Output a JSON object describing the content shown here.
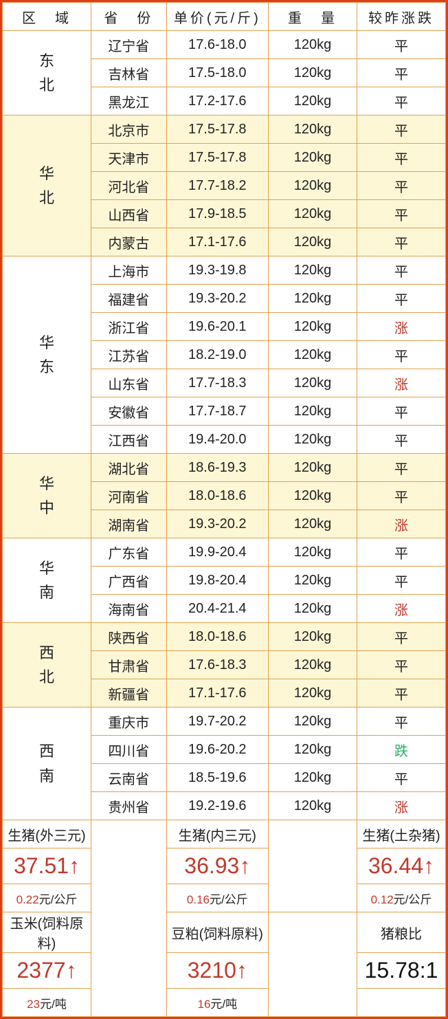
{
  "headers": {
    "region": "区　域",
    "province": "省　份",
    "price": "单价(元/斤)",
    "weight": "重　量",
    "trend": "较昨涨跌"
  },
  "trend_labels": {
    "flat": "平",
    "up": "涨",
    "down": "跌"
  },
  "groups": [
    {
      "region_lines": [
        "东",
        "北"
      ],
      "yellow": false,
      "rows": [
        {
          "province": "辽宁省",
          "price": "17.6-18.0",
          "weight": "120kg",
          "trend": "flat"
        },
        {
          "province": "吉林省",
          "price": "17.5-18.0",
          "weight": "120kg",
          "trend": "flat"
        },
        {
          "province": "黑龙江",
          "price": "17.2-17.6",
          "weight": "120kg",
          "trend": "flat"
        }
      ]
    },
    {
      "region_lines": [
        "华",
        "北"
      ],
      "yellow": true,
      "rows": [
        {
          "province": "北京市",
          "price": "17.5-17.8",
          "weight": "120kg",
          "trend": "flat"
        },
        {
          "province": "天津市",
          "price": "17.5-17.8",
          "weight": "120kg",
          "trend": "flat"
        },
        {
          "province": "河北省",
          "price": "17.7-18.2",
          "weight": "120kg",
          "trend": "flat"
        },
        {
          "province": "山西省",
          "price": "17.9-18.5",
          "weight": "120kg",
          "trend": "flat"
        },
        {
          "province": "内蒙古",
          "price": "17.1-17.6",
          "weight": "120kg",
          "trend": "flat"
        }
      ]
    },
    {
      "region_lines": [
        "华",
        "东"
      ],
      "yellow": false,
      "rows": [
        {
          "province": "上海市",
          "price": "19.3-19.8",
          "weight": "120kg",
          "trend": "flat"
        },
        {
          "province": "福建省",
          "price": "19.3-20.2",
          "weight": "120kg",
          "trend": "flat"
        },
        {
          "province": "浙江省",
          "price": "19.6-20.1",
          "weight": "120kg",
          "trend": "up"
        },
        {
          "province": "江苏省",
          "price": "18.2-19.0",
          "weight": "120kg",
          "trend": "flat"
        },
        {
          "province": "山东省",
          "price": "17.7-18.3",
          "weight": "120kg",
          "trend": "up"
        },
        {
          "province": "安徽省",
          "price": "17.7-18.7",
          "weight": "120kg",
          "trend": "flat"
        },
        {
          "province": "江西省",
          "price": "19.4-20.0",
          "weight": "120kg",
          "trend": "flat"
        }
      ]
    },
    {
      "region_lines": [
        "华",
        "中"
      ],
      "yellow": true,
      "rows": [
        {
          "province": "湖北省",
          "price": "18.6-19.3",
          "weight": "120kg",
          "trend": "flat"
        },
        {
          "province": "河南省",
          "price": "18.0-18.6",
          "weight": "120kg",
          "trend": "flat"
        },
        {
          "province": "湖南省",
          "price": "19.3-20.2",
          "weight": "120kg",
          "trend": "up"
        }
      ]
    },
    {
      "region_lines": [
        "华",
        "南"
      ],
      "yellow": false,
      "rows": [
        {
          "province": "广东省",
          "price": "19.9-20.4",
          "weight": "120kg",
          "trend": "flat"
        },
        {
          "province": "广西省",
          "price": "19.8-20.4",
          "weight": "120kg",
          "trend": "flat"
        },
        {
          "province": "海南省",
          "price": "20.4-21.4",
          "weight": "120kg",
          "trend": "up"
        }
      ]
    },
    {
      "region_lines": [
        "西",
        "北"
      ],
      "yellow": true,
      "rows": [
        {
          "province": "陕西省",
          "price": "18.0-18.6",
          "weight": "120kg",
          "trend": "flat"
        },
        {
          "province": "甘肃省",
          "price": "17.6-18.3",
          "weight": "120kg",
          "trend": "flat"
        },
        {
          "province": "新疆省",
          "price": "17.1-17.6",
          "weight": "120kg",
          "trend": "flat"
        }
      ]
    },
    {
      "region_lines": [
        "西",
        "南"
      ],
      "yellow": false,
      "rows": [
        {
          "province": "重庆市",
          "price": "19.7-20.2",
          "weight": "120kg",
          "trend": "flat"
        },
        {
          "province": "四川省",
          "price": "19.6-20.2",
          "weight": "120kg",
          "trend": "down"
        },
        {
          "province": "云南省",
          "price": "18.5-19.6",
          "weight": "120kg",
          "trend": "flat"
        },
        {
          "province": "贵州省",
          "price": "19.2-19.6",
          "weight": "120kg",
          "trend": "up"
        }
      ]
    }
  ],
  "summary": {
    "row1": {
      "c1": "生猪(外三元)",
      "c3": "生猪(内三元)",
      "c5": "生猪(土杂猪)"
    },
    "row2": {
      "c1": "37.51↑",
      "c3": "36.93↑",
      "c5": "36.44↑"
    },
    "row3": {
      "c1_num": "0.22",
      "c1_unit": "元/公斤",
      "c3_num": "0.16",
      "c3_unit": "元/公斤",
      "c5_num": "0.12",
      "c5_unit": "元/公斤"
    },
    "row4": {
      "c1": "玉米(饲料原料)",
      "c3": "豆粕(饲料原料)",
      "c5": "猪粮比"
    },
    "row5": {
      "c1": "2377↑",
      "c3": "3210↑",
      "c5": "15.78:1"
    },
    "row6": {
      "c1_num": "23",
      "c1_unit": "元/吨",
      "c3_num": "16",
      "c3_unit": "元/吨"
    }
  },
  "col_widths": [
    "20%",
    "17%",
    "23%",
    "20%",
    "20%"
  ]
}
